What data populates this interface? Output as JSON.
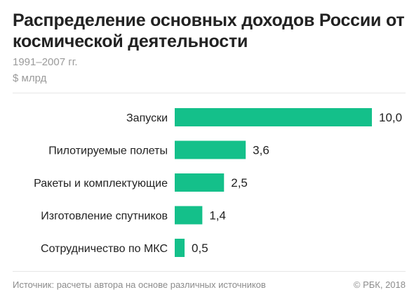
{
  "header": {
    "title": "Распределение основных доходов России от космической деятельности",
    "subtitle": "1991–2007 гг.",
    "unit": "$ млрд"
  },
  "footer": {
    "source": "Источник: расчеты автора на основе различных источников",
    "copyright": "© РБК, 2018"
  },
  "chart_data": {
    "type": "bar",
    "orientation": "horizontal",
    "title": "Распределение основных доходов России от космической деятельности",
    "subtitle": "1991–2007 гг.",
    "unit": "$ млрд",
    "categories": [
      "Запуски",
      "Пилотируемые полеты",
      "Ракеты и комплектующие",
      "Изготовление спутников",
      "Сотрудничество по МКС"
    ],
    "values": [
      10.0,
      3.6,
      2.5,
      1.4,
      0.5
    ],
    "value_labels": [
      "10,0",
      "3,6",
      "2,5",
      "1,4",
      "0,5"
    ],
    "xlim": [
      0,
      10.0
    ],
    "grid": false,
    "legend": "none",
    "bar_color": "#14c08a"
  }
}
